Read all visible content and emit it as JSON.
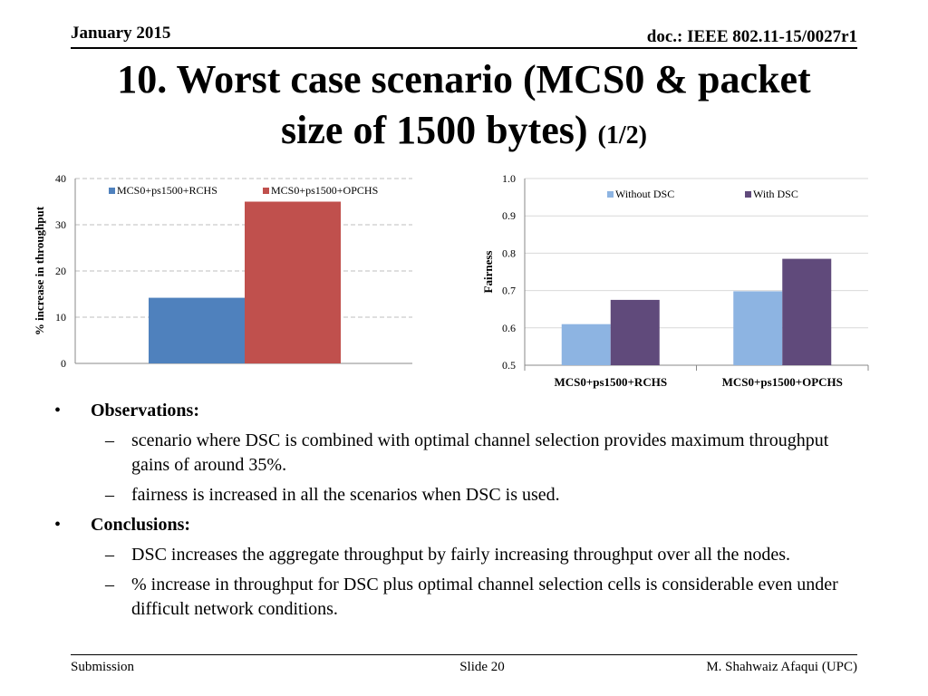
{
  "header": {
    "date": "January 2015",
    "doc": "doc.: IEEE 802.11-15/0027r1"
  },
  "title": {
    "line1": "10. Worst case scenario (MCS0 & packet",
    "line2": "size of 1500 bytes)",
    "part": "(1/2)"
  },
  "chart_data": [
    {
      "type": "bar",
      "title": "",
      "xlabel": "",
      "ylabel": "% increase in throughput",
      "ylim": [
        0,
        40
      ],
      "yticks": [
        "0",
        "10",
        "20",
        "30",
        "40"
      ],
      "grid": true,
      "legend": "top",
      "series": [
        {
          "name": "MCS0+ps1500+RCHS",
          "color": "#4f81bd",
          "values": [
            14.2
          ]
        },
        {
          "name": "MCS0+ps1500+OPCHS",
          "color": "#c0504d",
          "values": [
            35
          ]
        }
      ]
    },
    {
      "type": "bar",
      "title": "",
      "xlabel": "",
      "ylabel": "Fairness",
      "ylim": [
        0.5,
        1.0
      ],
      "yticks": [
        "0.5",
        "0.6",
        "0.7",
        "0.8",
        "0.9",
        "1.0"
      ],
      "grid": true,
      "legend": "top",
      "categories": [
        "MCS0+ps1500+RCHS",
        "MCS0+ps1500+OPCHS"
      ],
      "series": [
        {
          "name": "Without DSC",
          "color": "#8db4e2",
          "values": [
            0.61,
            0.698
          ]
        },
        {
          "name": "With DSC",
          "color": "#604a7b",
          "values": [
            0.675,
            0.785
          ]
        }
      ]
    }
  ],
  "body": {
    "bullet_char": "•",
    "dash_char": "–",
    "observations": {
      "heading": "Observations:",
      "items": [
        "scenario where DSC is combined with optimal channel selection provides maximum throughput gains of  around 35%.",
        "fairness is increased in all the scenarios when DSC is used."
      ]
    },
    "conclusions": {
      "heading": "Conclusions:",
      "items": [
        "DSC increases the aggregate throughput by fairly increasing throughput over all the nodes.",
        "% increase in throughput for DSC plus optimal channel selection cells is considerable even under difficult network conditions."
      ]
    }
  },
  "footer": {
    "left": "Submission",
    "center": "Slide 20",
    "right": "M. Shahwaiz Afaqui (UPC)"
  }
}
